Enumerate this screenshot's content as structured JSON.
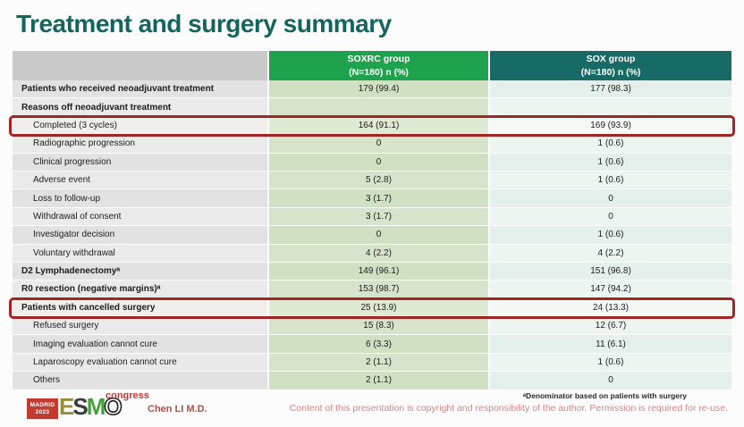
{
  "title": "Treatment and surgery summary",
  "table": {
    "header": {
      "soxrc": {
        "line1": "SOXRC group",
        "line2": "(N=180)  n (%)"
      },
      "sox": {
        "line1": "SOX group",
        "line2": "(N=180)  n (%)"
      }
    },
    "rows": [
      {
        "label": "Patients who received neoadjuvant treatment",
        "soxrc": "179 (99.4)",
        "sox": "177 (98.3)",
        "style": "section",
        "highlight": false
      },
      {
        "label": "Reasons off neoadjuvant treatment",
        "soxrc": "",
        "sox": "",
        "style": "section",
        "highlight": false
      },
      {
        "label": "Completed (3 cycles)",
        "soxrc": "164 (91.1)",
        "sox": "169 (93.9)",
        "style": "sub",
        "highlight": true
      },
      {
        "label": "Radiographic progression",
        "soxrc": "0",
        "sox": "1 (0.6)",
        "style": "sub",
        "highlight": false
      },
      {
        "label": "Clinical progression",
        "soxrc": "0",
        "sox": "1 (0.6)",
        "style": "sub",
        "highlight": false
      },
      {
        "label": "Adverse event",
        "soxrc": "5 (2.8)",
        "sox": "1 (0.6)",
        "style": "sub",
        "highlight": false
      },
      {
        "label": "Loss to follow-up",
        "soxrc": "3 (1.7)",
        "sox": "0",
        "style": "sub",
        "highlight": false
      },
      {
        "label": "Withdrawal of consent",
        "soxrc": "3 (1.7)",
        "sox": "0",
        "style": "sub",
        "highlight": false
      },
      {
        "label": "Investigator decision",
        "soxrc": "0",
        "sox": "1 (0.6)",
        "style": "sub",
        "highlight": false
      },
      {
        "label": "Voluntary withdrawal",
        "soxrc": "4 (2.2)",
        "sox": "4 (2.2)",
        "style": "sub",
        "highlight": false
      },
      {
        "label": "D2 Lymphadenectomyᵃ",
        "soxrc": "149 (96.1)",
        "sox": "151 (96.8)",
        "style": "section",
        "highlight": false
      },
      {
        "label": "R0 resection (negative margins)ᵃ",
        "soxrc": "153 (98.7)",
        "sox": "147 (94.2)",
        "style": "section",
        "highlight": false
      },
      {
        "label": "Patients with cancelled surgery",
        "soxrc": "25 (13.9)",
        "sox": "24 (13.3)",
        "style": "section",
        "highlight": true
      },
      {
        "label": "Refused surgery",
        "soxrc": "15 (8.3)",
        "sox": "12 (6.7)",
        "style": "sub",
        "highlight": false
      },
      {
        "label": "Imaging evaluation cannot cure",
        "soxrc": "6 (3.3)",
        "sox": "11 (6.1)",
        "style": "sub",
        "highlight": false
      },
      {
        "label": "Laparoscopy evaluation cannot cure",
        "soxrc": "2 (1.1)",
        "sox": "1 (0.6)",
        "style": "sub",
        "highlight": false
      },
      {
        "label": "Others",
        "soxrc": "2 (1.1)",
        "sox": "0",
        "style": "sub",
        "highlight": false
      }
    ]
  },
  "footer": {
    "logo": {
      "city": "MADRID",
      "year": "2023",
      "esmo": "ESMO",
      "congress": "congress"
    },
    "author": "Chen LI M.D.",
    "footnote": "ᵃDenominator based on patients with surgery",
    "copyright": "Content of this presentation is copyright and responsibility of the author. Permission is required for re-use."
  },
  "colors": {
    "title_text": "#15655f",
    "header_soxrc_bg": "#1fa24d",
    "header_sox_bg": "#186a66",
    "highlight_border": "#a32424",
    "author_text": "#a5544a",
    "copyright_text": "#d28787",
    "logo_red": "#c23b32",
    "esmo_letter_colors": [
      "#968f39",
      "#3b3b3b",
      "#44a23c",
      "#ffffff"
    ]
  }
}
